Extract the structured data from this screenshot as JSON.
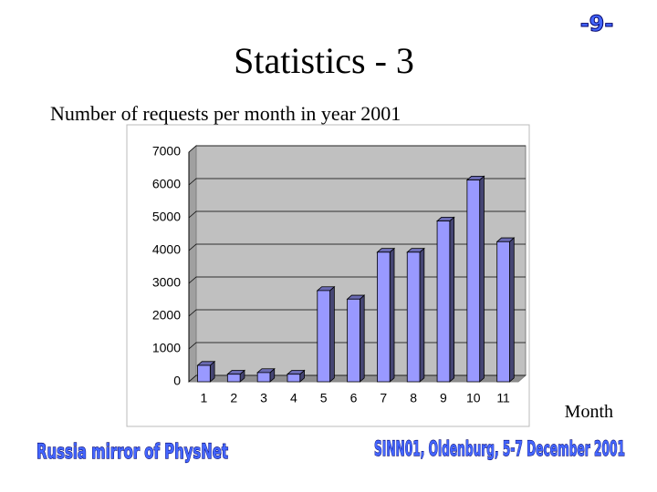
{
  "page_number": "-9-",
  "footer": {
    "left": "Russia mirror of PhysNet",
    "right": "SINN01, Oldenburg, 5-7 December 2001"
  },
  "chart_data": {
    "type": "bar",
    "title": "Statistics - 3",
    "subtitle": "Number of requests per month in year 2001",
    "x_label": "Month",
    "categories": [
      "1",
      "2",
      "3",
      "4",
      "5",
      "6",
      "7",
      "8",
      "9",
      "10",
      "11"
    ],
    "values": [
      500,
      230,
      280,
      230,
      2780,
      2520,
      3950,
      3950,
      4900,
      6150,
      4270
    ],
    "color": "#9999ff",
    "ylim": [
      0,
      7000
    ],
    "yticks": [
      0,
      1000,
      2000,
      3000,
      4000,
      5000,
      6000,
      7000
    ],
    "grid": true
  }
}
